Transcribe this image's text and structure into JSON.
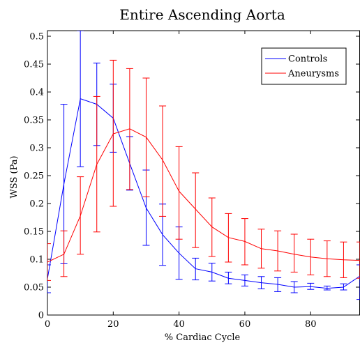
{
  "chart_data": {
    "type": "line",
    "title": "Entire Ascending Aorta",
    "xlabel": "% Cardiac Cycle",
    "ylabel": "WSS (Pa)",
    "xlim": [
      0,
      95
    ],
    "ylim": [
      0,
      0.51
    ],
    "xticks": [
      0,
      20,
      40,
      60,
      80
    ],
    "xtick_labels": [
      "0",
      "20",
      "40",
      "60",
      "80"
    ],
    "yticks": [
      0,
      0.05,
      0.1,
      0.15,
      0.2,
      0.25,
      0.3,
      0.35,
      0.4,
      0.45,
      0.5
    ],
    "ytick_labels": [
      "0",
      "0.05",
      "0.1",
      "0.15",
      "0.2",
      "0.25",
      "0.3",
      "0.35",
      "0.4",
      "0.45",
      "0.5"
    ],
    "grid": false,
    "legend_position": "top-right",
    "x": [
      0,
      5,
      10,
      15,
      20,
      25,
      30,
      35,
      40,
      45,
      50,
      55,
      60,
      65,
      70,
      75,
      80,
      85,
      90,
      95
    ],
    "series": [
      {
        "name": "Controls",
        "color": "#0000ff",
        "values": [
          0.065,
          0.235,
          0.388,
          0.378,
          0.353,
          0.272,
          0.192,
          0.144,
          0.111,
          0.083,
          0.077,
          0.066,
          0.062,
          0.058,
          0.055,
          0.05,
          0.051,
          0.048,
          0.05,
          0.07
        ],
        "error_low": [
          0.04,
          0.092,
          0.266,
          0.304,
          0.292,
          0.224,
          0.125,
          0.089,
          0.064,
          0.063,
          0.061,
          0.056,
          0.052,
          0.047,
          0.042,
          0.04,
          0.046,
          0.045,
          0.045,
          0.028
        ],
        "error_high": [
          0.09,
          0.378,
          0.51,
          0.452,
          0.414,
          0.32,
          0.26,
          0.199,
          0.158,
          0.102,
          0.093,
          0.077,
          0.072,
          0.069,
          0.067,
          0.06,
          0.057,
          0.052,
          0.056,
          0.09
        ]
      },
      {
        "name": "Aneurysms",
        "color": "#ff0000",
        "values": [
          0.095,
          0.109,
          0.178,
          0.27,
          0.325,
          0.334,
          0.319,
          0.278,
          0.222,
          0.19,
          0.158,
          0.139,
          0.132,
          0.119,
          0.115,
          0.109,
          0.104,
          0.101,
          0.099,
          0.098
        ],
        "error_low": [
          0.062,
          0.069,
          0.109,
          0.149,
          0.195,
          0.225,
          0.212,
          0.177,
          0.136,
          0.121,
          0.105,
          0.095,
          0.09,
          0.084,
          0.079,
          0.077,
          0.072,
          0.069,
          0.067,
          0.066
        ],
        "error_high": [
          0.128,
          0.151,
          0.248,
          0.392,
          0.457,
          0.442,
          0.425,
          0.375,
          0.302,
          0.255,
          0.21,
          0.182,
          0.173,
          0.154,
          0.151,
          0.145,
          0.136,
          0.133,
          0.131,
          0.131
        ]
      }
    ]
  }
}
